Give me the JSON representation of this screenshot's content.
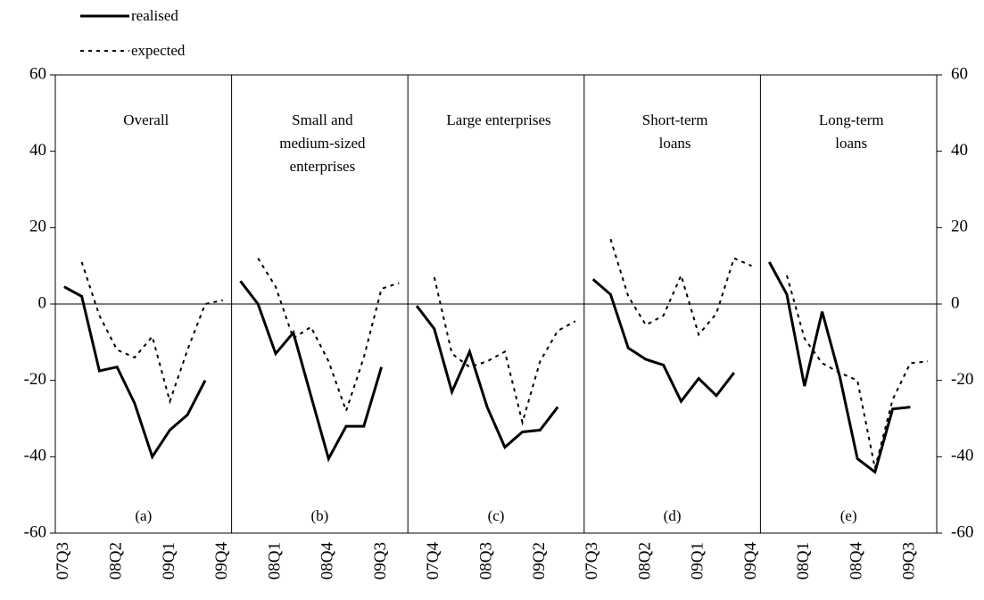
{
  "chart_data": {
    "type": "line",
    "categories": [
      "07Q3",
      null,
      null,
      "08Q2",
      null,
      null,
      "09Q1",
      null,
      null,
      "09Q4",
      null,
      null,
      "08Q1",
      null,
      null,
      "08Q4",
      null,
      null,
      "09Q3",
      null,
      null,
      "07Q4",
      null,
      null,
      "08Q3",
      null,
      null,
      "09Q2",
      null,
      null,
      "07Q3",
      null,
      null,
      "08Q2",
      null,
      null,
      "09Q1",
      null,
      null,
      "09Q4",
      null,
      null,
      "08Q1",
      null,
      null,
      "08Q4",
      null,
      null,
      "09Q3",
      null
    ],
    "panels": [
      {
        "title": [
          "Overall"
        ],
        "label": "(a)"
      },
      {
        "title": [
          "Small and",
          "medium-sized",
          "enterprises"
        ],
        "label": "(b)"
      },
      {
        "title": [
          "Large enterprises"
        ],
        "label": "(c)"
      },
      {
        "title": [
          "Short-term",
          "loans"
        ],
        "label": "(d)"
      },
      {
        "title": [
          "Long-term",
          "loans"
        ],
        "label": "(e)"
      }
    ],
    "series": [
      {
        "name": "realised",
        "color": "#000000",
        "dash": false,
        "values": [
          4.5,
          2,
          -17.5,
          -16.5,
          -26,
          -40,
          -33,
          -29,
          -20,
          null,
          6,
          0,
          -13,
          -7.5,
          -24,
          -40.5,
          -32,
          -32,
          -16.5,
          null,
          -0.5,
          -6.5,
          -23,
          -12.5,
          -27,
          -37.5,
          -33.5,
          -33,
          -27,
          null,
          6.5,
          2.5,
          -11.5,
          -14.5,
          -16,
          -25.5,
          -19.5,
          -24,
          -18,
          null,
          11,
          2.5,
          -21.5,
          -2,
          -19,
          -40.5,
          -44,
          -27.5,
          -27,
          null
        ]
      },
      {
        "name": "expected",
        "color": "#000000",
        "dash": true,
        "values": [
          null,
          11,
          -3,
          -12,
          -14,
          -8.5,
          -25.5,
          -12,
          0,
          1,
          null,
          12,
          4.5,
          -9,
          -6,
          -15,
          -28,
          -14,
          4,
          5.5,
          null,
          7,
          -13,
          -16.5,
          -15,
          -12.5,
          -31,
          -15,
          -7,
          -4.5,
          null,
          17,
          2,
          -5.5,
          -3,
          7.5,
          -8,
          -2.5,
          12,
          10,
          null,
          7.5,
          -9,
          -15.5,
          -18,
          -20,
          -43,
          -25,
          -15.5,
          -15
        ]
      }
    ],
    "ylim": [
      -60,
      60
    ],
    "yticks": [
      60,
      40,
      20,
      0,
      -20,
      -40,
      -60
    ],
    "y2lim": [
      -60,
      60
    ],
    "y2ticks": [
      60,
      40,
      20,
      0,
      -20,
      -40,
      -60
    ]
  }
}
